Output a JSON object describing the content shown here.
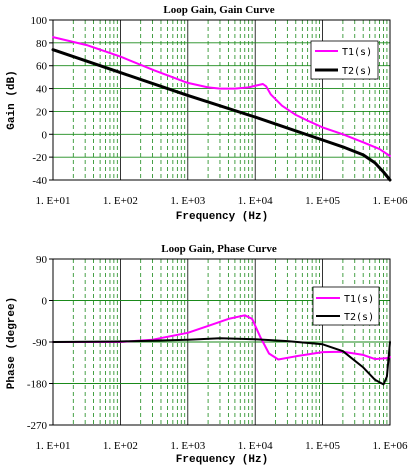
{
  "chart_data": [
    {
      "type": "line",
      "title": "Loop Gain, Gain Curve",
      "xlabel": "Frequency (Hz)",
      "ylabel": "Gain (dB)",
      "x_scale": "log",
      "xlim": [
        10,
        1000000
      ],
      "ylim": [
        -40,
        100
      ],
      "y_ticks": [
        "100",
        "80",
        "60",
        "40",
        "20",
        "0",
        "-20",
        "-40"
      ],
      "x_ticks": [
        "1. E+01",
        "1. E+02",
        "1. E+03",
        "1. E+04",
        "1. E+05",
        "1. E+06"
      ],
      "grid": true,
      "legend_position": "right",
      "series": [
        {
          "name": "T1(s)",
          "color": "#ff00ff",
          "points": [
            [
              10,
              85
            ],
            [
              31.6,
              78
            ],
            [
              100,
              68
            ],
            [
              316,
              56
            ],
            [
              1000,
              45
            ],
            [
              2000,
              41
            ],
            [
              3000,
              40
            ],
            [
              5000,
              40
            ],
            [
              8000,
              41
            ],
            [
              11000,
              43
            ],
            [
              13000,
              44
            ],
            [
              14500,
              42
            ],
            [
              17000,
              35
            ],
            [
              25000,
              25
            ],
            [
              40000,
              17
            ],
            [
              60000,
              12
            ],
            [
              100000,
              6
            ],
            [
              200000,
              0
            ],
            [
              400000,
              -7
            ],
            [
              700000,
              -13
            ],
            [
              1000000,
              -19
            ]
          ]
        },
        {
          "name": "T2(s)",
          "color": "#000000",
          "points": [
            [
              10,
              74
            ],
            [
              100,
              54
            ],
            [
              1000,
              34
            ],
            [
              10000,
              15
            ],
            [
              100000,
              -5
            ],
            [
              200000,
              -11
            ],
            [
              400000,
              -18
            ],
            [
              600000,
              -25
            ],
            [
              800000,
              -33
            ],
            [
              1000000,
              -40
            ]
          ]
        }
      ]
    },
    {
      "type": "line",
      "title": "Loop Gain, Phase Curve",
      "xlabel": "Frequency (Hz)",
      "ylabel": "Phase (degree)",
      "x_scale": "log",
      "xlim": [
        10,
        1000000
      ],
      "ylim": [
        -270,
        90
      ],
      "y_ticks": [
        "90",
        "0",
        "-90",
        "-180",
        "-270"
      ],
      "x_ticks": [
        "1. E+01",
        "1. E+02",
        "1. E+03",
        "1. E+04",
        "1. E+05",
        "1. E+06"
      ],
      "grid": true,
      "legend_position": "right",
      "series": [
        {
          "name": "T1(s)",
          "color": "#ff00ff",
          "points": [
            [
              10,
              -90
            ],
            [
              100,
              -90
            ],
            [
              300,
              -85
            ],
            [
              1000,
              -70
            ],
            [
              2000,
              -55
            ],
            [
              4000,
              -40
            ],
            [
              7000,
              -32
            ],
            [
              9000,
              -40
            ],
            [
              12000,
              -80
            ],
            [
              16000,
              -115
            ],
            [
              22000,
              -128
            ],
            [
              40000,
              -121
            ],
            [
              100000,
              -112
            ],
            [
              200000,
              -111
            ],
            [
              400000,
              -118
            ],
            [
              600000,
              -127
            ],
            [
              900000,
              -125
            ],
            [
              1000000,
              -123
            ]
          ]
        },
        {
          "name": "T2(s)",
          "color": "#000000",
          "points": [
            [
              10,
              -90
            ],
            [
              100,
              -89
            ],
            [
              1000,
              -85
            ],
            [
              3000,
              -82
            ],
            [
              10000,
              -84
            ],
            [
              30000,
              -88
            ],
            [
              100000,
              -95
            ],
            [
              200000,
              -110
            ],
            [
              400000,
              -145
            ],
            [
              600000,
              -172
            ],
            [
              800000,
              -182
            ],
            [
              900000,
              -165
            ],
            [
              1000000,
              -90
            ]
          ]
        }
      ]
    }
  ]
}
